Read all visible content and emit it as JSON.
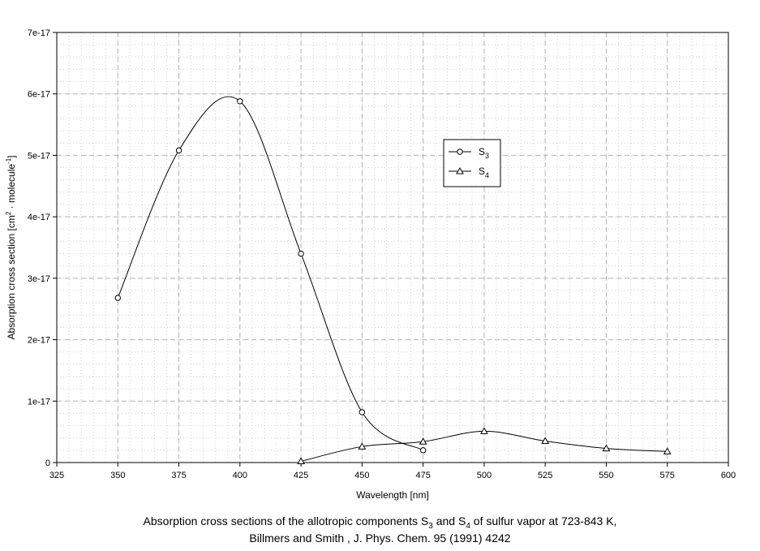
{
  "chart_data": {
    "type": "line",
    "title": "",
    "xlabel": "Wavelength [nm]",
    "ylabel_parts": {
      "prefix": "Absorption cross section [cm",
      "sup1": "2",
      "middle": " · molecule",
      "sup2": "-1",
      "suffix": "]"
    },
    "xlim": [
      325,
      600
    ],
    "ylim": [
      0,
      7e-17
    ],
    "x_ticks": [
      325,
      350,
      375,
      400,
      425,
      450,
      475,
      500,
      525,
      550,
      575,
      600
    ],
    "x_tick_labels": [
      "325",
      "350",
      "375",
      "400",
      "425",
      "450",
      "475",
      "500",
      "525",
      "550",
      "575",
      "600"
    ],
    "y_ticks": [
      0,
      1e-17,
      2e-17,
      3e-17,
      4e-17,
      5e-17,
      6e-17,
      7e-17
    ],
    "y_tick_labels": [
      "0",
      "1e-17",
      "2e-17",
      "3e-17",
      "4e-17",
      "5e-17",
      "6e-17",
      "7e-17"
    ],
    "grid": true,
    "legend_position": "upper-right",
    "series": [
      {
        "name": "S3",
        "name_base": "S",
        "name_sub": "3",
        "marker": "circle",
        "x": [
          350,
          375,
          400,
          425,
          450,
          475
        ],
        "y": [
          2.68e-17,
          5.08e-17,
          5.88e-17,
          3.4e-17,
          8.2e-18,
          2e-18
        ]
      },
      {
        "name": "S4",
        "name_base": "S",
        "name_sub": "4",
        "marker": "triangle",
        "x": [
          425,
          450,
          475,
          500,
          525,
          550,
          575
        ],
        "y": [
          2e-19,
          2.6e-18,
          3.4e-18,
          5.1e-18,
          3.5e-18,
          2.3e-18,
          1.8e-18
        ]
      }
    ]
  },
  "caption": {
    "line1_a": "Absorption cross sections of the allotropic components S",
    "line1_sub1": "3",
    "line1_b": " and S",
    "line1_sub2": "4",
    "line1_c": " of sulfur vapor at 723-843 K,",
    "line2": "Billmers and Smith , J. Phys. Chem. 95 (1991) 4242"
  }
}
